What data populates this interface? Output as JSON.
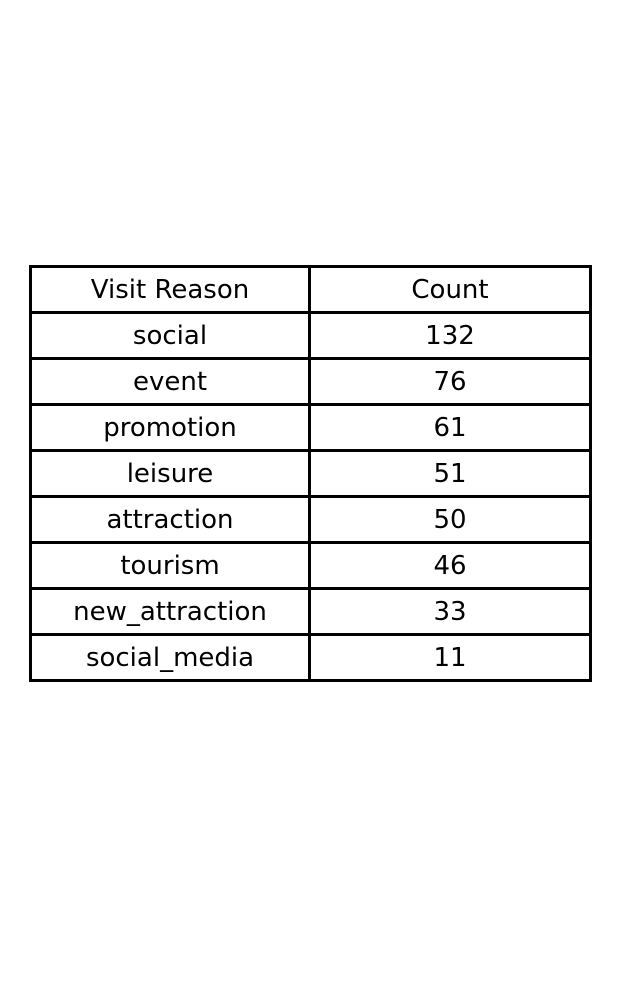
{
  "chart_data": {
    "type": "table",
    "columns": [
      "Visit Reason",
      "Count"
    ],
    "rows": [
      [
        "social",
        132
      ],
      [
        "event",
        76
      ],
      [
        "promotion",
        61
      ],
      [
        "leisure",
        51
      ],
      [
        "attraction",
        50
      ],
      [
        "tourism",
        46
      ],
      [
        "new_attraction",
        33
      ],
      [
        "social_media",
        11
      ]
    ]
  }
}
